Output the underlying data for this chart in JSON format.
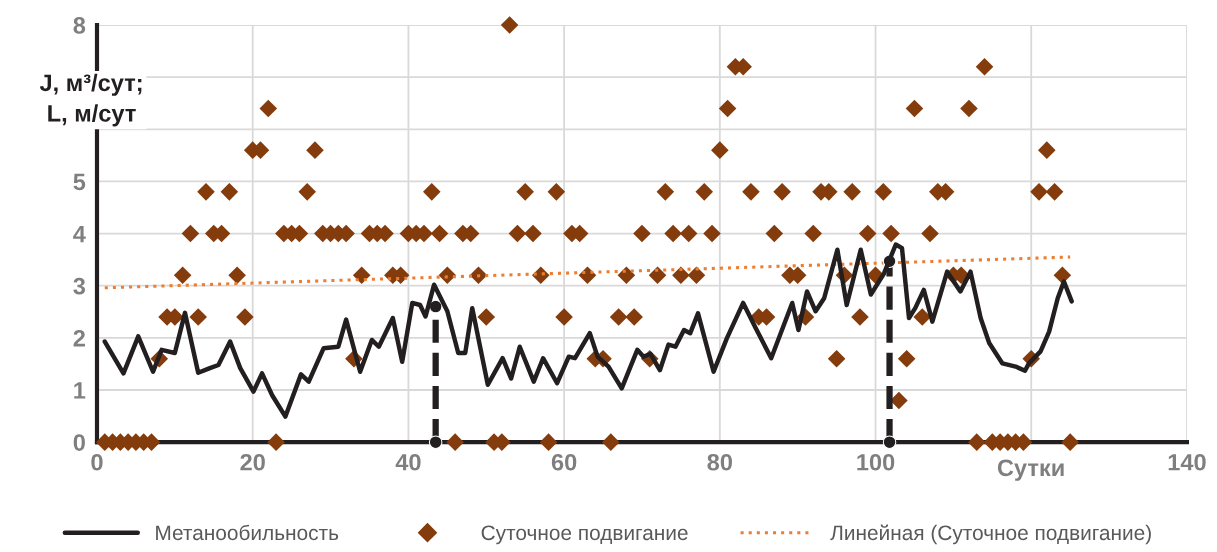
{
  "chart_data": {
    "type": "line",
    "xlabel": "Сутки",
    "ylabel": "J, м³/сут;\nL, м/сут",
    "xlim": [
      0,
      140
    ],
    "ylim": [
      0,
      8
    ],
    "xticks": [
      0,
      20,
      40,
      60,
      80,
      100,
      {
        "value": 120,
        "label": null
      },
      140
    ],
    "yticks": [
      0,
      1,
      2,
      3,
      4,
      5,
      {
        "value": 6,
        "label": null
      },
      {
        "value": 7,
        "label": null
      },
      8
    ],
    "grid": true,
    "legend": "bottom",
    "series": [
      {
        "name": "Метанообильность",
        "color": "#231f20",
        "line_style": "solid",
        "marker": "none",
        "x": [
          1.0,
          3.4,
          5.3,
          7.2,
          8.3,
          10.0,
          11.3,
          13.0,
          14.5,
          15.6,
          17.1,
          18.4,
          20.1,
          21.2,
          22.5,
          24.2,
          26.2,
          27.2,
          29.1,
          31.0,
          32.0,
          33.8,
          35.3,
          36.2,
          38.0,
          39.2,
          40.5,
          41.5,
          42.2,
          43.3,
          45.0,
          46.4,
          47.3,
          48.2,
          50.2,
          52.1,
          53.2,
          54.3,
          56.1,
          57.3,
          59.1,
          60.6,
          61.4,
          63.3,
          64.3,
          65.7,
          67.4,
          69.4,
          70.2,
          71.1,
          72.3,
          73.4,
          74.3,
          75.4,
          76.2,
          77.2,
          79.2,
          80.9,
          83.0,
          84.6,
          86.6,
          89.3,
          90.1,
          91.2,
          92.3,
          93.4,
          95.1,
          96.3,
          98.1,
          99.4,
          101.1,
          102.6,
          103.4,
          104.3,
          105.1,
          106.2,
          107.3,
          109.2,
          110.9,
          112.2,
          113.5,
          114.6,
          116.3,
          118.0,
          119.2,
          119.7,
          121.2,
          122.3,
          123.4,
          124.2,
          125.2
        ],
        "values": [
          1.93,
          1.32,
          2.03,
          1.35,
          1.77,
          1.71,
          2.48,
          1.33,
          1.42,
          1.48,
          1.93,
          1.42,
          0.97,
          1.32,
          0.9,
          0.49,
          1.3,
          1.16,
          1.8,
          1.83,
          2.35,
          1.35,
          1.96,
          1.83,
          2.38,
          1.54,
          2.67,
          2.63,
          2.41,
          3.02,
          2.51,
          1.71,
          1.71,
          2.57,
          1.1,
          1.61,
          1.22,
          1.83,
          1.16,
          1.61,
          1.13,
          1.64,
          1.61,
          2.09,
          1.64,
          1.45,
          1.03,
          1.77,
          1.64,
          1.69,
          1.38,
          1.87,
          1.83,
          2.15,
          2.09,
          2.47,
          1.35,
          1.99,
          2.67,
          2.19,
          1.61,
          2.67,
          2.15,
          2.89,
          2.51,
          2.76,
          3.69,
          2.63,
          3.69,
          2.83,
          3.24,
          3.79,
          3.72,
          2.38,
          2.57,
          2.92,
          2.31,
          3.27,
          2.89,
          3.27,
          2.38,
          1.9,
          1.51,
          1.45,
          1.37,
          1.51,
          1.74,
          2.12,
          2.76,
          3.08,
          2.7
        ]
      },
      {
        "name": "Суточное подвигание",
        "type": "scatter",
        "color": "#843c0c",
        "marker": "diamond",
        "x": [
          1,
          2,
          3,
          4,
          5,
          6,
          7,
          8,
          9,
          10,
          11,
          12,
          13,
          14,
          15,
          16,
          17,
          18,
          19,
          20,
          21,
          22,
          23,
          24,
          25,
          26,
          27,
          28,
          29,
          30,
          31,
          32,
          33,
          34,
          35,
          36,
          37,
          38,
          39,
          40,
          41,
          42,
          43,
          44,
          45,
          46,
          47,
          48,
          49,
          50,
          51,
          52,
          53,
          54,
          55,
          56,
          57,
          58,
          59,
          60,
          61,
          62,
          63,
          64,
          65,
          66,
          67,
          68,
          69,
          70,
          71,
          72,
          73,
          74,
          75,
          76,
          77,
          78,
          79,
          80,
          81,
          82,
          83,
          84,
          85,
          86,
          87,
          88,
          89,
          90,
          91,
          92,
          93,
          94,
          95,
          96,
          97,
          98,
          99,
          100,
          101,
          102,
          103,
          104,
          105,
          106,
          107,
          108,
          109,
          110,
          111,
          112,
          113,
          114,
          115,
          116,
          117,
          118,
          119,
          120,
          121,
          122,
          123,
          124,
          125
        ],
        "values": [
          0,
          0,
          0,
          0,
          0,
          0,
          0,
          1.6,
          2.4,
          2.4,
          3.2,
          4,
          2.4,
          4.8,
          4,
          4,
          4.8,
          3.2,
          2.4,
          5.6,
          5.6,
          6.4,
          0,
          4,
          4,
          4,
          4.8,
          5.6,
          4,
          4,
          4,
          4,
          1.6,
          3.2,
          4,
          4,
          4,
          3.2,
          3.2,
          4,
          4,
          4,
          4.8,
          4,
          3.2,
          0,
          4,
          4,
          3.2,
          2.4,
          0,
          0,
          8,
          4,
          4.8,
          4,
          3.2,
          0,
          4.8,
          2.4,
          4,
          4,
          3.2,
          1.6,
          1.6,
          0,
          2.4,
          3.2,
          2.4,
          4,
          1.6,
          3.2,
          4.8,
          4,
          3.2,
          4,
          3.2,
          4.8,
          4,
          5.6,
          6.4,
          7.2,
          7.2,
          4.8,
          2.4,
          2.4,
          4,
          4.8,
          3.2,
          3.2,
          2.4,
          4,
          4.8,
          4.8,
          1.6,
          3.2,
          4.8,
          2.4,
          4,
          3.2,
          4.8,
          4,
          0.8,
          1.6,
          6.4,
          2.4,
          4,
          4.8,
          4.8,
          3.2,
          3.2,
          6.4,
          0,
          7.2,
          0,
          0,
          0,
          0,
          0,
          1.6,
          4.8,
          5.6,
          4.8,
          3.2,
          0
        ]
      },
      {
        "name": "Линейная (Суточное подвигание)",
        "type": "line",
        "color": "#ed7d31",
        "line_style": "dotted",
        "marker": "none",
        "x": [
          1,
          125
        ],
        "values": [
          2.96,
          3.55
        ]
      },
      {
        "type": "line",
        "color": "#231f20",
        "line_style": "dashed",
        "marker": "circle",
        "x": [
          43.5,
          43.5
        ],
        "values": [
          0,
          2.6
        ]
      },
      {
        "type": "line",
        "color": "#231f20",
        "line_style": "dashed",
        "marker": "circle",
        "x": [
          101.8,
          101.8
        ],
        "values": [
          0,
          3.47
        ]
      }
    ]
  }
}
